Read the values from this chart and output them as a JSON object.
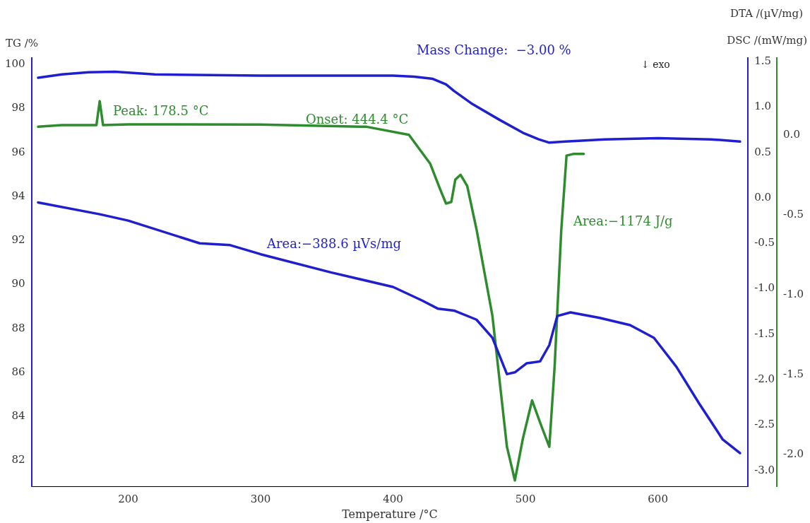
{
  "chart_data": {
    "type": "line",
    "xlabel": "Temperature /°C",
    "ylabel": "TG /%",
    "y2label": "DTA /(µV/mg)",
    "y3label": "DSC /(mW/mg)",
    "xlim": [
      127,
      668
    ],
    "xticks": [
      200,
      300,
      400,
      500,
      600
    ],
    "ylim": [
      80.8,
      100.3
    ],
    "yticks": [
      82,
      84,
      86,
      88,
      90,
      92,
      94,
      96,
      98,
      100
    ],
    "y2lim": [
      -3.18,
      1.54
    ],
    "y2ticks": [
      {
        "value": 1.5,
        "label": "1.5"
      },
      {
        "value": 1,
        "label": "1.0"
      },
      {
        "value": 0.5,
        "label": "0.5"
      },
      {
        "value": 0,
        "label": "0.0"
      },
      {
        "value": -0.5,
        "label": "-0.5"
      },
      {
        "value": -1,
        "label": "-1.0"
      },
      {
        "value": -1.5,
        "label": "-1.5"
      },
      {
        "value": -2,
        "label": "-2.0"
      },
      {
        "value": -2.5,
        "label": "-2.5"
      },
      {
        "value": -3,
        "label": "-3.0"
      }
    ],
    "y3lim": [
      -2.2,
      0.48
    ],
    "y3ticks": [
      {
        "value": 0,
        "label": "0.0"
      },
      {
        "value": -0.5,
        "label": "-0.5"
      },
      {
        "value": -1,
        "label": "-1.0"
      },
      {
        "value": -1.5,
        "label": "-1.5"
      },
      {
        "value": -2,
        "label": "-2.0"
      }
    ],
    "marker": "none",
    "grid": false,
    "legend": false,
    "series": [
      {
        "color": "#1f1fcf",
        "x": [
          132,
          150,
          170,
          190,
          220,
          300,
          400,
          416,
          430,
          440,
          446,
          460,
          480,
          498,
          510,
          518,
          530,
          560,
          600,
          640,
          662
        ],
        "values": [
          99.4,
          99.55,
          99.65,
          99.67,
          99.55,
          99.5,
          99.5,
          99.45,
          99.35,
          99.1,
          98.8,
          98.2,
          97.5,
          96.9,
          96.6,
          96.45,
          96.5,
          96.6,
          96.65,
          96.6,
          96.5
        ]
      },
      {
        "color": "#1f1fcf",
        "axis": "y2",
        "x": [
          132,
          178.5,
          200,
          254,
          277,
          300,
          353,
          400,
          422,
          434,
          446,
          463,
          475,
          486,
          492,
          501,
          511,
          518,
          524,
          534,
          556,
          579,
          597,
          614,
          631,
          649,
          662
        ],
        "values": [
          -0.05,
          -0.18,
          -0.25,
          -0.5,
          -0.52,
          -0.62,
          -0.82,
          -0.98,
          -1.13,
          -1.22,
          -1.24,
          -1.34,
          -1.54,
          -1.94,
          -1.92,
          -1.82,
          -1.8,
          -1.62,
          -1.3,
          -1.26,
          -1.32,
          -1.4,
          -1.54,
          -1.86,
          -2.26,
          -2.66,
          -2.81
        ]
      },
      {
        "color": "#2e8b2e",
        "axis": "y3",
        "x": [
          132,
          150,
          176,
          178.5,
          181,
          200,
          300,
          380,
          412,
          428,
          436,
          440,
          444,
          447,
          451,
          456,
          463,
          475,
          486,
          492,
          498,
          505,
          512,
          518,
          522,
          527,
          531,
          536,
          544
        ],
        "values": [
          0.05,
          0.06,
          0.06,
          0.21,
          0.06,
          0.065,
          0.064,
          0.05,
          0.0,
          -0.18,
          -0.35,
          -0.43,
          -0.42,
          -0.28,
          -0.25,
          -0.32,
          -0.59,
          -1.13,
          -1.95,
          -2.16,
          -1.9,
          -1.66,
          -1.82,
          -1.95,
          -1.45,
          -0.6,
          -0.13,
          -0.12,
          -0.12
        ]
      }
    ],
    "annotations": [
      "Peak: 178.5 °C",
      "Onset: 444.4 °C",
      "Mass Change:  −3.00 %",
      "Area:−1174 J/g",
      "Area:−388.6 µVs/mg",
      "↓ exo"
    ]
  }
}
